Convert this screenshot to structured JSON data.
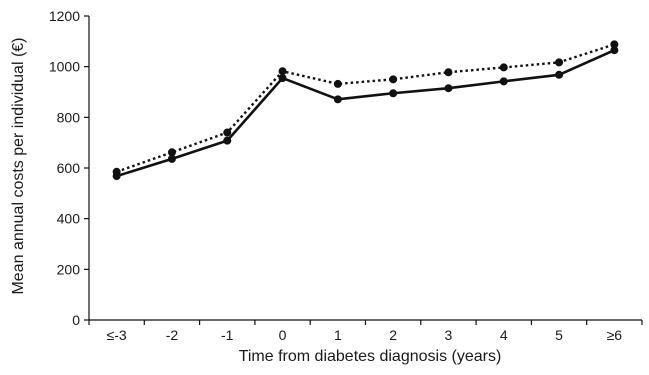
{
  "chart_data": {
    "type": "line",
    "xlabel": "Time from diabetes diagnosis (years)",
    "ylabel": "Mean annual costs per individual (€)",
    "categories": [
      "≤-3",
      "-2",
      "-1",
      "0",
      "1",
      "2",
      "3",
      "4",
      "5",
      "≥6"
    ],
    "ylim": [
      0,
      1200
    ],
    "yticks": [
      "0",
      "200",
      "400",
      "600",
      "800",
      "1000",
      "1200"
    ],
    "grid": false,
    "legend": "none",
    "series": [
      {
        "style": "dotted",
        "color": "#111111",
        "values": [
          585,
          662,
          740,
          982,
          932,
          950,
          978,
          997,
          1017,
          1088
        ]
      },
      {
        "style": "solid",
        "color": "#111111",
        "values": [
          568,
          636,
          708,
          955,
          871,
          895,
          915,
          942,
          968,
          1065
        ]
      }
    ]
  }
}
